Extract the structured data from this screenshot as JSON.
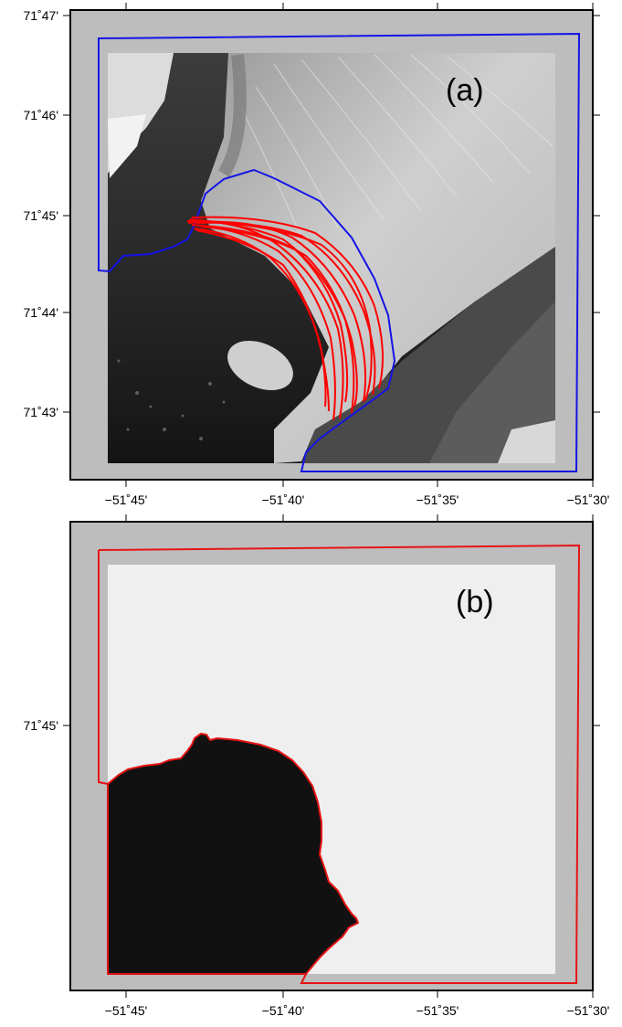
{
  "figure": {
    "panels": [
      {
        "id": "a",
        "label": "(a)",
        "lat_ticks": [
          "71˚47'",
          "71˚46'",
          "71˚45'",
          "71˚44'",
          "71˚43'"
        ],
        "lon_ticks": [
          "−51˚45'",
          "−51˚40'",
          "−51˚35'",
          "−51˚30'"
        ],
        "boundary_color": "#1414e6",
        "track_color": "#ff0000",
        "content": "satellite image of glacier terminus with ice-front tracks"
      },
      {
        "id": "b",
        "label": "(b)",
        "lat_ticks": [
          "71˚45'"
        ],
        "lon_ticks": [
          "−51˚45'",
          "−51˚40'",
          "−51˚35'",
          "−51˚30'"
        ],
        "boundary_color": "#e61414",
        "mask_colors": {
          "land": "#111111",
          "ice": "#efefef",
          "padding": "#bdbdbd"
        }
      }
    ]
  }
}
